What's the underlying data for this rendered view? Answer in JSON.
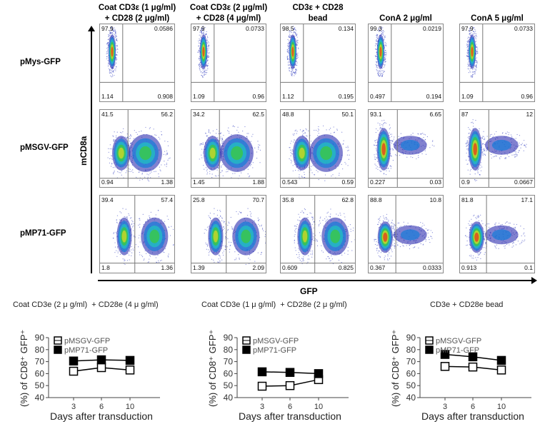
{
  "flow": {
    "column_headers": [
      [
        "Coat CD3ε (1 μg/ml)",
        "+ CD28 (2 μg/ml)"
      ],
      [
        "Coat CD3ε (2 μg/ml)",
        "+ CD28 (4 μg/ml)"
      ],
      [
        "CD3ε + CD28",
        "bead"
      ],
      [
        "",
        "ConA 2 μg/ml"
      ],
      [
        "",
        "ConA 5 μg/ml"
      ]
    ],
    "y_axis_label": "mCD8a",
    "x_axis_label": "GFP",
    "rows": [
      {
        "label": "pMys-GFP",
        "quadrants": [
          [
            "97.9",
            "0.0586",
            "1.14",
            "0.908"
          ],
          [
            "97.9",
            "0.0733",
            "1.09",
            "0.96"
          ],
          [
            "98.5",
            "0.134",
            "1.12",
            "0.195"
          ],
          [
            "99.3",
            "0.0219",
            "0.497",
            "0.194"
          ],
          [
            "97.9",
            "0.0733",
            "1.09",
            "0.96"
          ]
        ]
      },
      {
        "label": "pMSGV-GFP",
        "quadrants": [
          [
            "41.5",
            "56.2",
            "0.94",
            "1.38"
          ],
          [
            "34.2",
            "62.5",
            "1.45",
            "1.88"
          ],
          [
            "48.8",
            "50.1",
            "0.543",
            "0.59"
          ],
          [
            "93.1",
            "6.65",
            "0.227",
            "0.03"
          ],
          [
            "87",
            "12",
            "0.9",
            "0.0667"
          ]
        ]
      },
      {
        "label": "pMP71-GFP",
        "quadrants": [
          [
            "39.4",
            "57.4",
            "1.8",
            "1.36"
          ],
          [
            "25.8",
            "70.7",
            "1.39",
            "2.09"
          ],
          [
            "35.8",
            "62.8",
            "0.609",
            "0.825"
          ],
          [
            "88.8",
            "10.8",
            "0.367",
            "0.0333"
          ],
          [
            "81.8",
            "17.1",
            "0.913",
            "0.1"
          ]
        ]
      }
    ]
  },
  "chart_data": [
    {
      "type": "line",
      "title": "Coat CD3e (2 μ g/ml)  + CD28e (4 μ g/ml)",
      "xlabel": "Days after transduction",
      "ylabel": "(%) of CD8⁺ GFP⁺",
      "x": [
        3,
        6,
        10
      ],
      "ylim": [
        40,
        90
      ],
      "yticks": [
        40,
        50,
        60,
        70,
        80,
        90
      ],
      "legend": "top-left",
      "series": [
        {
          "name": "pMSGV-GFP",
          "marker": "open-square",
          "values": [
            62,
            65,
            63
          ]
        },
        {
          "name": "pMP71-GFP",
          "marker": "filled-square",
          "values": [
            70.5,
            71.5,
            71
          ]
        }
      ]
    },
    {
      "type": "line",
      "title": "Coat CD3e (1 μ g/ml)  + CD28e (2 μ g/ml)",
      "xlabel": "Days after transduction",
      "ylabel": "(%) of CD8⁺ GFP⁺",
      "x": [
        3,
        6,
        10
      ],
      "ylim": [
        40,
        90
      ],
      "yticks": [
        40,
        50,
        60,
        70,
        80,
        90
      ],
      "legend": "top-left",
      "series": [
        {
          "name": "pMSGV-GFP",
          "marker": "open-square",
          "values": [
            49.5,
            50,
            55
          ]
        },
        {
          "name": "pMP71-GFP",
          "marker": "filled-square",
          "values": [
            61.5,
            61,
            60
          ]
        }
      ]
    },
    {
      "type": "line",
      "title": "CD3e + CD28e bead",
      "xlabel": "Days after transduction",
      "ylabel": "(%) of CD8⁺ GFP⁺",
      "x": [
        3,
        6,
        10
      ],
      "ylim": [
        40,
        90
      ],
      "yticks": [
        40,
        50,
        60,
        70,
        80,
        90
      ],
      "legend": "top-left",
      "series": [
        {
          "name": "pMSGV-GFP",
          "marker": "open-square",
          "values": [
            66,
            65.5,
            63
          ]
        },
        {
          "name": "pMP71-GFP",
          "marker": "filled-square",
          "values": [
            76,
            74,
            71
          ]
        }
      ]
    }
  ]
}
